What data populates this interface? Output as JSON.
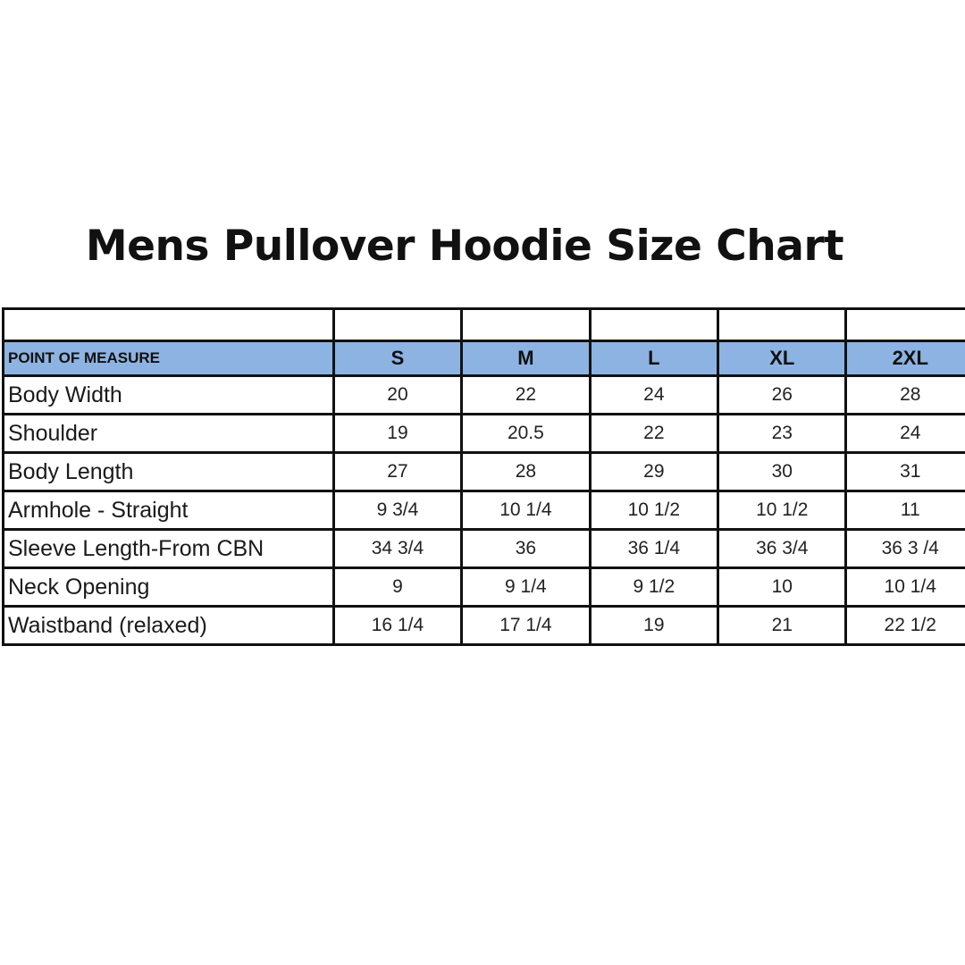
{
  "title": "Mens Pullover Hoodie Size Chart",
  "table": {
    "header": [
      "POINT OF MEASURE",
      "S",
      "M",
      "L",
      "XL",
      "2XL"
    ],
    "header_color": "#8db3e2",
    "rows": [
      {
        "label": "Body Width",
        "values": [
          "20",
          "22",
          "24",
          "26",
          "28"
        ]
      },
      {
        "label": "Shoulder",
        "values": [
          "19",
          "20.5",
          "22",
          "23",
          "24"
        ]
      },
      {
        "label": "Body Length",
        "values": [
          "27",
          "28",
          "29",
          "30",
          "31"
        ]
      },
      {
        "label": "Armhole - Straight",
        "values": [
          "9 3/4",
          "10 1/4",
          "10 1/2",
          "10 1/2",
          "11"
        ]
      },
      {
        "label": "Sleeve Length-From CBN",
        "values": [
          "34 3/4",
          "36",
          "36 1/4",
          "36 3/4",
          "36  3 /4"
        ]
      },
      {
        "label": "Neck Opening",
        "values": [
          "9",
          "9 1/4",
          "9 1/2",
          "10",
          "10 1/4"
        ]
      },
      {
        "label": "Waistband (relaxed)",
        "values": [
          "16 1/4",
          "17 1/4",
          "19",
          "21",
          "22 1/2"
        ]
      }
    ]
  }
}
